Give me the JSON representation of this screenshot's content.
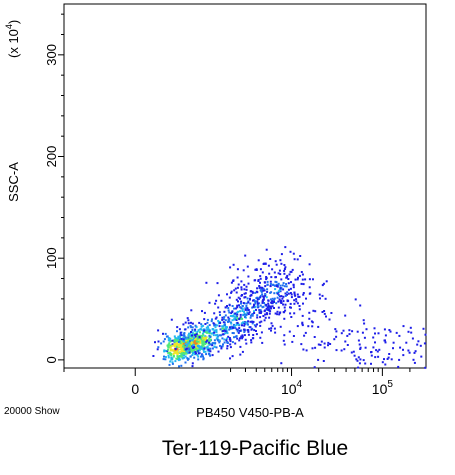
{
  "chart_data": {
    "type": "scatter",
    "title": "Ter-119-Pacific Blue",
    "xlabel": "PB450 V450-PB-A",
    "ylabel": "SSC-A",
    "y_multiplier": "(x 10",
    "y_multiplier_exp": "4",
    "y_multiplier_close": ")",
    "event_count": "20000 Show",
    "x_scale": "biexponential",
    "y_scale": "linear",
    "xlim": [
      -1000,
      300000
    ],
    "ylim": [
      -8,
      350
    ],
    "x_ticks": [
      {
        "value": 0,
        "base": "0",
        "exp": ""
      },
      {
        "value": 10000,
        "base": "10",
        "exp": "4"
      },
      {
        "value": 100000,
        "base": "10",
        "exp": "5"
      }
    ],
    "y_ticks": [
      {
        "value": 0,
        "label": "0"
      },
      {
        "value": 100,
        "label": "100"
      },
      {
        "value": 200,
        "label": "200"
      },
      {
        "value": 300,
        "label": "300"
      }
    ],
    "density_colors": [
      "#1e1ee8",
      "#1f6ff0",
      "#22b7f0",
      "#4ee87a",
      "#f0e62a",
      "#f08020",
      "#e01818"
    ],
    "populations": [
      {
        "name": "",
        "points": [
          {
            "x": 500,
            "y": 15,
            "density": 6
          },
          {
            "x": 700,
            "y": 18,
            "density": 5
          },
          {
            "x": 350,
            "y": 12,
            "density": 5
          },
          {
            "x": 900,
            "y": 22,
            "density": 4
          },
          {
            "x": 1500,
            "y": 30,
            "density": 3
          },
          {
            "x": 2500,
            "y": 42,
            "density": 3
          },
          {
            "x": 3500,
            "y": 52,
            "density": 2
          },
          {
            "x": 5000,
            "y": 62,
            "density": 2
          },
          {
            "x": 6500,
            "y": 70,
            "density": 2
          },
          {
            "x": 8000,
            "y": 75,
            "density": 1
          }
        ]
      },
      {
        "name": "",
        "points": [
          {
            "x": 20000,
            "y": 20,
            "density": 0
          },
          {
            "x": 60000,
            "y": 12,
            "density": 0
          },
          {
            "x": 150000,
            "y": 10,
            "density": 0
          }
        ]
      }
    ]
  }
}
